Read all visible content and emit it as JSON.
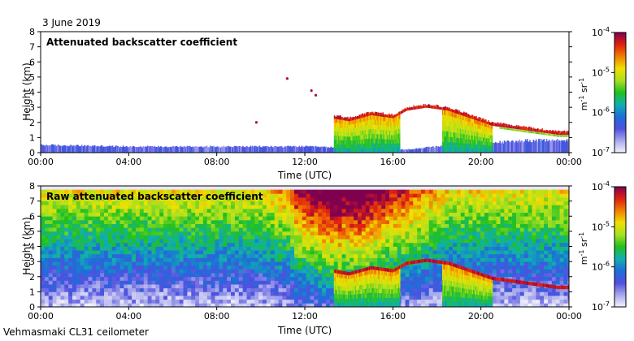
{
  "date_label": "3 June 2019",
  "instrument_label": "Vehmasmaki CL31 ceilometer",
  "colors": {
    "background": "#ffffff",
    "frame": "#000000",
    "colormap": [
      "#f2f2ff",
      "#b8b8ee",
      "#5050e0",
      "#1e6ed8",
      "#10b0b0",
      "#20c020",
      "#a8e020",
      "#f0e000",
      "#f08000",
      "#e02010",
      "#800050"
    ]
  },
  "chart_data": [
    {
      "type": "heatmap",
      "title": "Attenuated backscatter coefficient",
      "xlabel": "Time (UTC)",
      "ylabel": "Height (km)",
      "xlim": [
        0,
        24
      ],
      "ylim": [
        0,
        8
      ],
      "x_ticks": [
        "00:00",
        "04:00",
        "08:00",
        "12:00",
        "16:00",
        "20:00",
        "00:00"
      ],
      "x_tick_hours": [
        0,
        4,
        8,
        12,
        16,
        20,
        24
      ],
      "y_ticks": [
        0,
        1,
        2,
        3,
        4,
        5,
        6,
        7,
        8
      ],
      "colorbar": {
        "scale": "log",
        "range": [
          1e-07,
          0.0001
        ],
        "tick_exponents": [
          -4,
          -5,
          -6,
          -7
        ],
        "tick_base": "10",
        "label": "m-1 sr-1"
      },
      "features": {
        "boundary_layer_top_km": [
          [
            0,
            0.5
          ],
          [
            2,
            0.45
          ],
          [
            4,
            0.4
          ],
          [
            6,
            0.4
          ],
          [
            8,
            0.4
          ],
          [
            10,
            0.4
          ],
          [
            12,
            0.4
          ],
          [
            13.2,
            0.35
          ],
          [
            16.5,
            0.2
          ],
          [
            18,
            0.4
          ],
          [
            20,
            0.6
          ],
          [
            22,
            0.8
          ],
          [
            24,
            0.8
          ]
        ],
        "cloud_base_km": [
          [
            13.2,
            2.3
          ],
          [
            14,
            2.1
          ],
          [
            15,
            2.5
          ],
          [
            16,
            2.3
          ],
          [
            16.6,
            2.8
          ],
          [
            17.5,
            3.0
          ],
          [
            18.5,
            2.8
          ],
          [
            19.5,
            2.3
          ],
          [
            20.5,
            1.8
          ],
          [
            21.5,
            1.6
          ],
          [
            22.5,
            1.4
          ],
          [
            23.5,
            1.2
          ],
          [
            24,
            1.2
          ]
        ],
        "precipitation_hours": [
          [
            13.3,
            16.3
          ],
          [
            18.2,
            20.5
          ]
        ],
        "elevated_layers": [
          [
            12.3,
            4.1
          ],
          [
            12.5,
            3.8
          ],
          [
            9.8,
            2.0
          ],
          [
            11.2,
            4.9
          ]
        ]
      }
    },
    {
      "type": "heatmap",
      "title": "Raw attenuated backscatter coefficient",
      "xlabel": "Time (UTC)",
      "ylabel": "Height (km)",
      "xlim": [
        0,
        24
      ],
      "ylim": [
        0,
        8
      ],
      "x_ticks": [
        "00:00",
        "04:00",
        "08:00",
        "12:00",
        "16:00",
        "20:00",
        "00:00"
      ],
      "x_tick_hours": [
        0,
        4,
        8,
        12,
        16,
        20,
        24
      ],
      "y_ticks": [
        0,
        1,
        2,
        3,
        4,
        5,
        6,
        7,
        8
      ],
      "colorbar": {
        "scale": "log",
        "range": [
          1e-07,
          0.0001
        ],
        "tick_exponents": [
          -4,
          -5,
          -6,
          -7
        ],
        "tick_base": "10",
        "label": "m-1 sr-1"
      },
      "features": {
        "noise_floor_increases_with_height": true,
        "daytime_noise_peak_hours": [
          11.5,
          17.0
        ],
        "data_top_km": 7.6
      }
    }
  ]
}
